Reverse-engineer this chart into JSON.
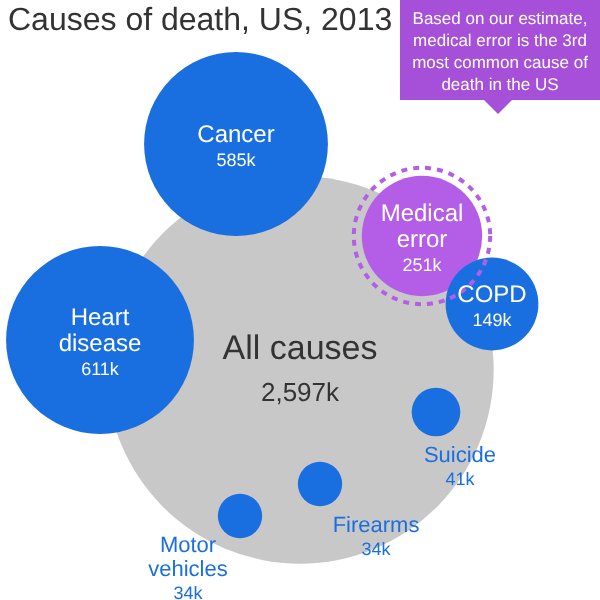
{
  "chart_data": {
    "type": "other",
    "title": "Causes of death, US, 2013",
    "categories": [
      "All causes",
      "Cancer",
      "Medical error",
      "Heart disease",
      "COPD",
      "Suicide",
      "Firearms",
      "Motor vehicles"
    ],
    "values": [
      2597,
      585,
      251,
      611,
      149,
      41,
      34,
      34
    ],
    "value_labels": [
      "2,597k",
      "585k",
      "251k",
      "611k",
      "149k",
      "41k",
      "34k",
      "34k"
    ],
    "colors": [
      "#c8c8c8",
      "#1a6fe0",
      "#b45de6",
      "#1a6fe0",
      "#1a6fe0",
      "#1a6fe0",
      "#1a6fe0",
      "#1a6fe0"
    ],
    "annotations": [
      {
        "text": "Based on our estimate, medical error is the 3rd most common cause of death in the US",
        "x": "Medical error"
      }
    ]
  }
}
